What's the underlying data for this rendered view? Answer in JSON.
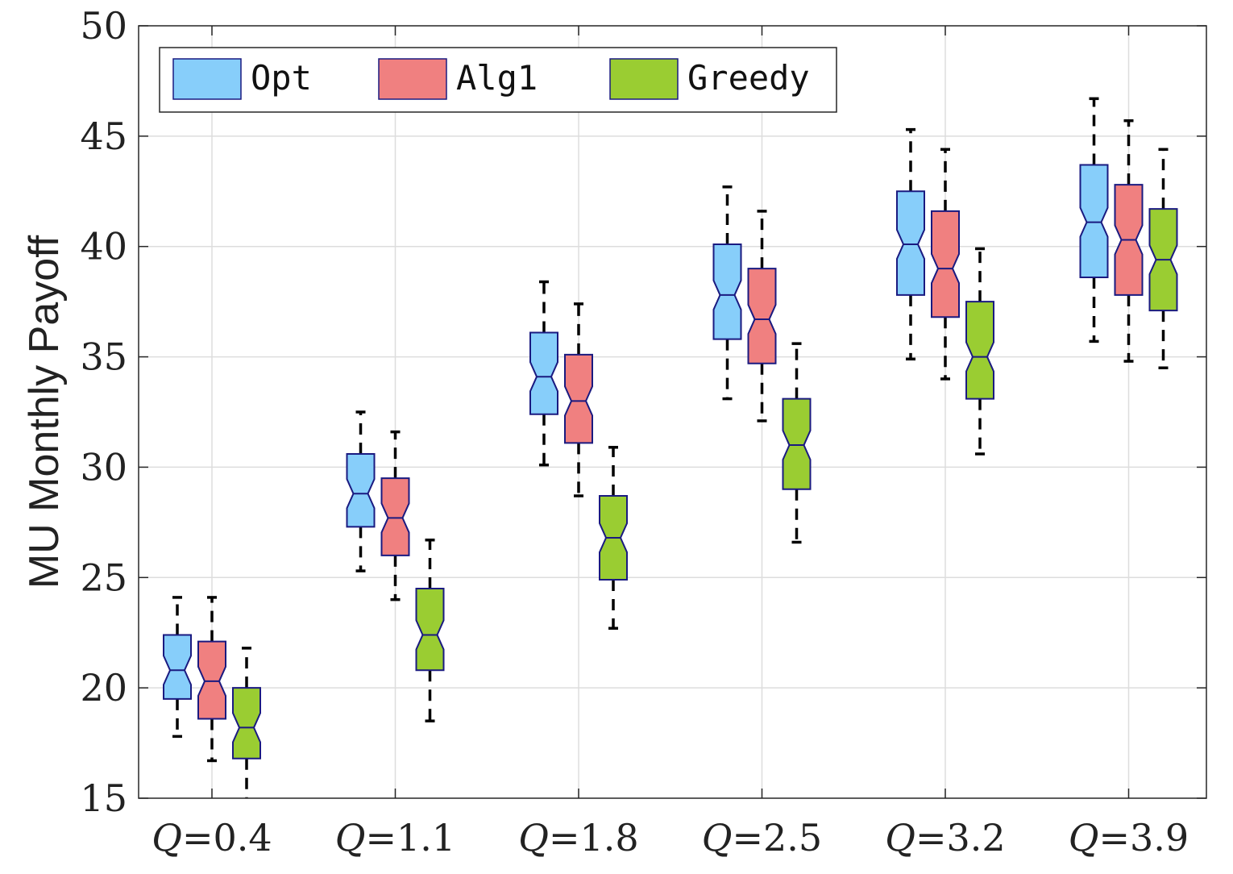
{
  "chart_data": {
    "type": "box",
    "title": "",
    "xlabel": "",
    "ylabel": "MU Monthly Payoff",
    "ylim": [
      15,
      50
    ],
    "yticks": [
      15,
      20,
      25,
      30,
      35,
      40,
      45,
      50
    ],
    "grid": true,
    "legend_position": "top-left",
    "categories": [
      {
        "var": "Q",
        "eq": "=",
        "val": "0.4"
      },
      {
        "var": "Q",
        "eq": "=",
        "val": "1.1"
      },
      {
        "var": "Q",
        "eq": "=",
        "val": "1.8"
      },
      {
        "var": "Q",
        "eq": "=",
        "val": "2.5"
      },
      {
        "var": "Q",
        "eq": "=",
        "val": "3.2"
      },
      {
        "var": "Q",
        "eq": "=",
        "val": "3.9"
      }
    ],
    "series": [
      {
        "name": "Opt",
        "color": "#87CEFA",
        "boxes": [
          {
            "whisker_low": 17.8,
            "q1": 19.5,
            "median": 20.8,
            "q3": 22.4,
            "whisker_high": 24.1
          },
          {
            "whisker_low": 25.3,
            "q1": 27.3,
            "median": 28.8,
            "q3": 30.6,
            "whisker_high": 32.5
          },
          {
            "whisker_low": 30.1,
            "q1": 32.4,
            "median": 34.1,
            "q3": 36.1,
            "whisker_high": 38.4
          },
          {
            "whisker_low": 33.1,
            "q1": 35.8,
            "median": 37.8,
            "q3": 40.1,
            "whisker_high": 42.7
          },
          {
            "whisker_low": 34.9,
            "q1": 37.8,
            "median": 40.1,
            "q3": 42.5,
            "whisker_high": 45.3
          },
          {
            "whisker_low": 35.7,
            "q1": 38.6,
            "median": 41.1,
            "q3": 43.7,
            "whisker_high": 46.7
          }
        ]
      },
      {
        "name": "Alg1",
        "color": "#F08080",
        "boxes": [
          {
            "whisker_low": 16.7,
            "q1": 18.6,
            "median": 20.3,
            "q3": 22.1,
            "whisker_high": 24.1
          },
          {
            "whisker_low": 24.0,
            "q1": 26.0,
            "median": 27.7,
            "q3": 29.5,
            "whisker_high": 31.6
          },
          {
            "whisker_low": 28.7,
            "q1": 31.1,
            "median": 33.0,
            "q3": 35.1,
            "whisker_high": 37.4
          },
          {
            "whisker_low": 32.1,
            "q1": 34.7,
            "median": 36.7,
            "q3": 39.0,
            "whisker_high": 41.6
          },
          {
            "whisker_low": 34.0,
            "q1": 36.8,
            "median": 39.0,
            "q3": 41.6,
            "whisker_high": 44.4
          },
          {
            "whisker_low": 34.8,
            "q1": 37.8,
            "median": 40.3,
            "q3": 42.8,
            "whisker_high": 45.7
          }
        ]
      },
      {
        "name": "Greedy",
        "color": "#9ACD32",
        "boxes": [
          {
            "whisker_low": 14.5,
            "q1": 16.8,
            "median": 18.2,
            "q3": 20.0,
            "whisker_high": 21.8
          },
          {
            "whisker_low": 18.5,
            "q1": 20.8,
            "median": 22.4,
            "q3": 24.5,
            "whisker_high": 26.7
          },
          {
            "whisker_low": 22.7,
            "q1": 24.9,
            "median": 26.8,
            "q3": 28.7,
            "whisker_high": 30.9
          },
          {
            "whisker_low": 26.6,
            "q1": 29.0,
            "median": 31.0,
            "q3": 33.1,
            "whisker_high": 35.6
          },
          {
            "whisker_low": 30.6,
            "q1": 33.1,
            "median": 35.0,
            "q3": 37.5,
            "whisker_high": 39.9
          },
          {
            "whisker_low": 34.5,
            "q1": 37.1,
            "median": 39.4,
            "q3": 41.7,
            "whisker_high": 44.4
          }
        ]
      }
    ]
  }
}
